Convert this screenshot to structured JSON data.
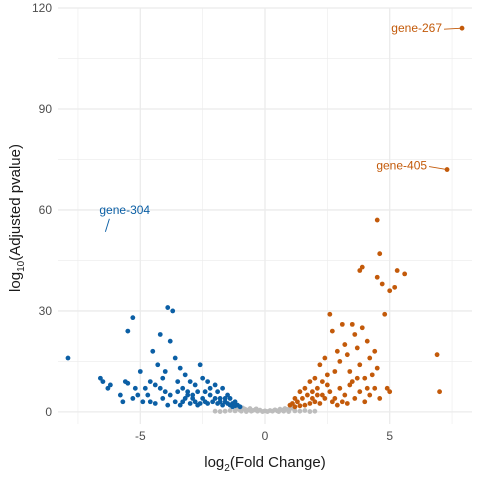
{
  "chart_data": {
    "type": "scatter",
    "title": "",
    "xlabel_parts": [
      "log",
      "2",
      "(Fold Change)"
    ],
    "ylabel_parts": [
      "log",
      "10",
      "(Adjusted pvalue)"
    ],
    "xlim": [
      -8.3,
      8.3
    ],
    "ylim": [
      -3.6,
      120
    ],
    "x_ticks": [
      -5,
      0,
      5
    ],
    "x_tick_labels": [
      "-5",
      "0",
      "5"
    ],
    "y_ticks": [
      0,
      30,
      60,
      90,
      120
    ],
    "y_tick_labels": [
      "0",
      "30",
      "60",
      "90",
      "120"
    ],
    "grid": true,
    "colors": {
      "down": "#0b5fa5",
      "up": "#c35a0a",
      "ns": "#bdbdbd",
      "grid": "#ebebeb"
    },
    "series": [
      {
        "key": "down",
        "points": [
          [
            -7.9,
            16
          ],
          [
            -6.6,
            10
          ],
          [
            -6.5,
            9
          ],
          [
            -6.2,
            8
          ],
          [
            -5.8,
            5
          ],
          [
            -5.6,
            9
          ],
          [
            -5.5,
            8.5
          ],
          [
            -5.3,
            4
          ],
          [
            -5.2,
            7
          ],
          [
            -5.5,
            24
          ],
          [
            -5.3,
            28
          ],
          [
            -5.0,
            12
          ],
          [
            -4.8,
            7
          ],
          [
            -4.6,
            3
          ],
          [
            -4.5,
            18
          ],
          [
            -4.4,
            8
          ],
          [
            -4.3,
            14
          ],
          [
            -4.2,
            23
          ],
          [
            -4.1,
            10
          ],
          [
            -4.0,
            12
          ],
          [
            -3.9,
            31
          ],
          [
            -3.7,
            30
          ],
          [
            -3.8,
            21
          ],
          [
            -3.6,
            16
          ],
          [
            -3.5,
            9
          ],
          [
            -3.4,
            13
          ],
          [
            -3.3,
            7
          ],
          [
            -3.2,
            11
          ],
          [
            -3.1,
            6
          ],
          [
            -3.0,
            9
          ],
          [
            -2.9,
            4
          ],
          [
            -2.8,
            8
          ],
          [
            -2.6,
            14
          ],
          [
            -2.5,
            10
          ],
          [
            -2.4,
            6
          ],
          [
            -2.3,
            9
          ],
          [
            -2.2,
            5
          ],
          [
            -2.0,
            8
          ],
          [
            -1.9,
            6
          ],
          [
            -1.8,
            4
          ],
          [
            -1.7,
            7
          ],
          [
            -1.6,
            3
          ],
          [
            -1.5,
            5
          ],
          [
            -1.4,
            4
          ],
          [
            -1.3,
            2.5
          ],
          [
            -1.2,
            3
          ],
          [
            -1.1,
            2
          ],
          [
            -1.0,
            1.5
          ],
          [
            -4.9,
            3
          ],
          [
            -4.7,
            5
          ],
          [
            -4.4,
            2.5
          ],
          [
            -4.1,
            4
          ],
          [
            -3.9,
            2
          ],
          [
            -3.6,
            3
          ],
          [
            -3.4,
            2
          ],
          [
            -3.2,
            4
          ],
          [
            -3.0,
            2.5
          ],
          [
            -2.8,
            3
          ],
          [
            -2.7,
            2
          ],
          [
            -2.5,
            4
          ],
          [
            -2.3,
            2.5
          ],
          [
            -2.1,
            3
          ],
          [
            -1.9,
            2.5
          ],
          [
            -1.7,
            2
          ],
          [
            -1.5,
            2.5
          ],
          [
            -1.3,
            1.5
          ],
          [
            -4.6,
            9
          ],
          [
            -4.2,
            7
          ],
          [
            -3.8,
            5
          ],
          [
            -3.5,
            6
          ],
          [
            -3.1,
            5
          ],
          [
            -2.7,
            6
          ],
          [
            -2.4,
            3
          ],
          [
            -2.2,
            7
          ],
          [
            -2.0,
            4
          ],
          [
            -1.8,
            3
          ],
          [
            -1.6,
            4
          ],
          [
            -1.4,
            2
          ],
          [
            -1.2,
            1.8
          ],
          [
            -5.7,
            3
          ],
          [
            -5.1,
            5
          ],
          [
            -6.3,
            7
          ],
          [
            -3.3,
            3
          ],
          [
            -2.9,
            5
          ],
          [
            -2.6,
            2.5
          ],
          [
            -4.0,
            6
          ]
        ]
      },
      {
        "key": "up",
        "points": [
          [
            7.9,
            114
          ],
          [
            7.3,
            72
          ],
          [
            6.9,
            17
          ],
          [
            7.0,
            6
          ],
          [
            4.5,
            57
          ],
          [
            4.6,
            47
          ],
          [
            3.8,
            42
          ],
          [
            3.9,
            43
          ],
          [
            4.5,
            40
          ],
          [
            4.7,
            38
          ],
          [
            5.0,
            36
          ],
          [
            5.2,
            37
          ],
          [
            5.3,
            42
          ],
          [
            5.6,
            41
          ],
          [
            4.8,
            29
          ],
          [
            4.9,
            7
          ],
          [
            5.0,
            6
          ],
          [
            2.6,
            29
          ],
          [
            2.7,
            24
          ],
          [
            3.1,
            26
          ],
          [
            3.2,
            20
          ],
          [
            3.5,
            26
          ],
          [
            3.6,
            23
          ],
          [
            3.7,
            19
          ],
          [
            3.9,
            25
          ],
          [
            4.1,
            21
          ],
          [
            4.2,
            16
          ],
          [
            4.4,
            18
          ],
          [
            4.3,
            11
          ],
          [
            4.5,
            13
          ],
          [
            4.0,
            10
          ],
          [
            3.8,
            14
          ],
          [
            3.4,
            12
          ],
          [
            3.3,
            17
          ],
          [
            3.0,
            15
          ],
          [
            2.9,
            18
          ],
          [
            2.8,
            12
          ],
          [
            2.5,
            11
          ],
          [
            2.4,
            16
          ],
          [
            2.3,
            9
          ],
          [
            2.2,
            14
          ],
          [
            2.1,
            7
          ],
          [
            2.0,
            10
          ],
          [
            1.9,
            6
          ],
          [
            1.8,
            9
          ],
          [
            1.7,
            5
          ],
          [
            1.6,
            7
          ],
          [
            1.5,
            4
          ],
          [
            1.4,
            6
          ],
          [
            1.3,
            3
          ],
          [
            1.2,
            4
          ],
          [
            1.1,
            2.5
          ],
          [
            1.0,
            2
          ],
          [
            2.6,
            6
          ],
          [
            2.8,
            4
          ],
          [
            3.0,
            7
          ],
          [
            3.2,
            5
          ],
          [
            3.4,
            8
          ],
          [
            3.6,
            4
          ],
          [
            3.8,
            6
          ],
          [
            4.0,
            3
          ],
          [
            4.2,
            5
          ],
          [
            4.4,
            7
          ],
          [
            4.6,
            4
          ],
          [
            2.0,
            3
          ],
          [
            1.8,
            2.5
          ],
          [
            1.6,
            2
          ],
          [
            2.2,
            2.5
          ],
          [
            2.4,
            4
          ],
          [
            2.7,
            3
          ],
          [
            2.9,
            2
          ],
          [
            3.1,
            3
          ],
          [
            3.3,
            2.5
          ],
          [
            1.4,
            1.8
          ],
          [
            1.2,
            1.5
          ],
          [
            2.5,
            8
          ],
          [
            2.3,
            5
          ],
          [
            1.9,
            4
          ],
          [
            2.1,
            5
          ],
          [
            3.5,
            9
          ],
          [
            3.7,
            10
          ],
          [
            4.1,
            7
          ]
        ]
      },
      {
        "key": "ns",
        "points": [
          [
            -0.9,
            1.2
          ],
          [
            -0.8,
            0.8
          ],
          [
            -0.7,
            0.5
          ],
          [
            -0.6,
            1.0
          ],
          [
            -0.5,
            0.4
          ],
          [
            -0.4,
            0.6
          ],
          [
            -0.3,
            0.2
          ],
          [
            -0.2,
            0.5
          ],
          [
            -0.1,
            0.1
          ],
          [
            0.0,
            0.3
          ],
          [
            0.1,
            0.1
          ],
          [
            0.2,
            0.4
          ],
          [
            0.3,
            0.2
          ],
          [
            0.4,
            0.6
          ],
          [
            0.5,
            0.3
          ],
          [
            0.6,
            0.8
          ],
          [
            0.7,
            0.5
          ],
          [
            0.8,
            1.0
          ],
          [
            0.9,
            0.7
          ],
          [
            1.0,
            0.9
          ],
          [
            -1.0,
            0.5
          ],
          [
            -1.2,
            0.3
          ],
          [
            -1.4,
            0.4
          ],
          [
            -1.6,
            0.2
          ],
          [
            -1.8,
            0.1
          ],
          [
            -2.0,
            0.2
          ],
          [
            1.2,
            0.3
          ],
          [
            1.4,
            0.2
          ],
          [
            1.6,
            0.4
          ],
          [
            1.8,
            0.1
          ],
          [
            2.0,
            0.2
          ],
          [
            -0.95,
            0.2
          ],
          [
            -0.75,
            0.1
          ],
          [
            -0.55,
            0.2
          ],
          [
            0.55,
            0.1
          ],
          [
            0.75,
            0.2
          ],
          [
            0.95,
            0.1
          ],
          [
            -1.1,
            0.9
          ],
          [
            1.1,
            1.1
          ],
          [
            -0.35,
            0.9
          ]
        ]
      }
    ],
    "annotations": [
      {
        "text": "gene-267",
        "x": 7.9,
        "y": 114,
        "color_key": "up",
        "anchor": "end",
        "dx": -20,
        "dy": 4
      },
      {
        "text": "gene-405",
        "x": 7.3,
        "y": 72,
        "color_key": "up",
        "anchor": "end",
        "dx": -20,
        "dy": 0
      },
      {
        "text": "gene-304",
        "x": -6.4,
        "y": 53.5,
        "color_key": "down",
        "anchor": "start",
        "dx": -6,
        "dy": -18
      }
    ]
  }
}
